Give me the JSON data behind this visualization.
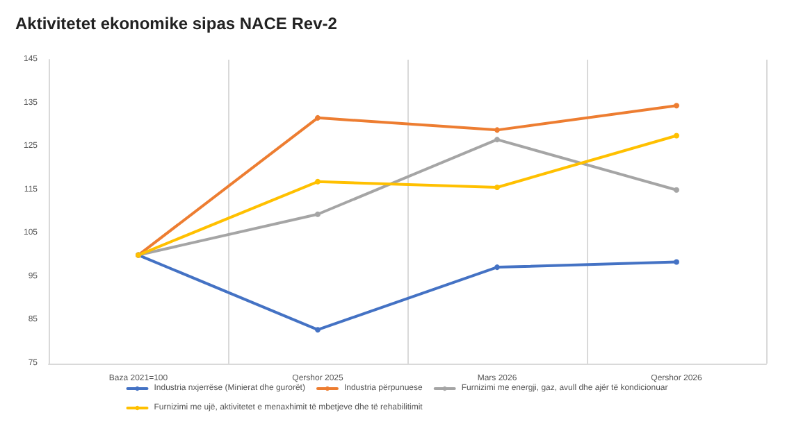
{
  "chart_data": {
    "type": "line",
    "title": "Aktivitetet ekonomike sipas NACE Rev-2",
    "categories": [
      "Baza 2021=100",
      "Qershor 2025",
      "Mars 2026",
      "Qershor 2026"
    ],
    "series": [
      {
        "name": "Industria nxjerrëse (Minierat dhe gurorët)",
        "color": "#4472c4",
        "values": [
          100,
          82.8,
          97.2,
          98.4
        ]
      },
      {
        "name": "Industria përpunuese",
        "color": "#ed7d31",
        "values": [
          100,
          131.6,
          128.8,
          134.4
        ]
      },
      {
        "name": "Furnizimi me energji, gaz, avull dhe ajër të kondicionuar",
        "color": "#a5a5a5",
        "values": [
          100,
          109.4,
          126.6,
          115
        ]
      },
      {
        "name": "Furnizimi me ujë, aktivitetet e menaxhimit të mbetjeve dhe të rehabilitimit",
        "color": "#ffc000",
        "values": [
          100,
          116.9,
          115.6,
          127.5
        ]
      }
    ],
    "ylim": [
      75,
      145
    ],
    "yticks": [
      75,
      85,
      95,
      105,
      115,
      125,
      135,
      145
    ],
    "grid": "x",
    "legend": "bottom",
    "marker": "circle",
    "line_style": "solid"
  }
}
